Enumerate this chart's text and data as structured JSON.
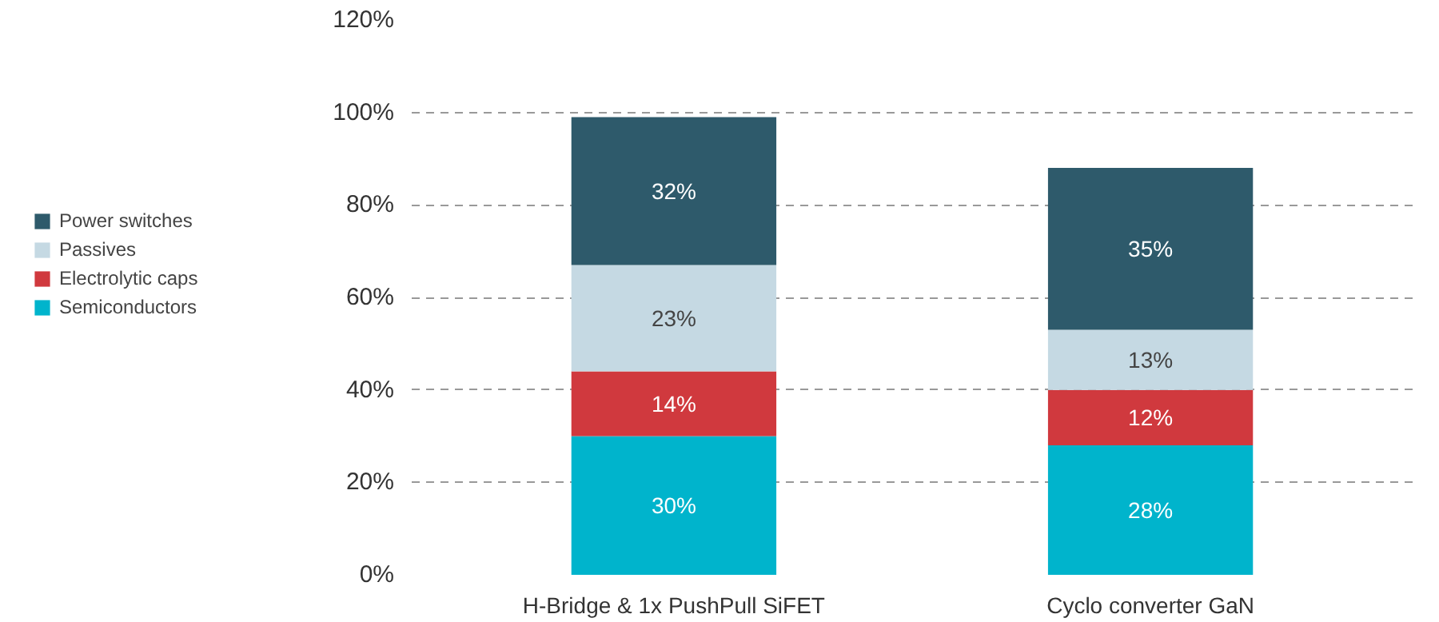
{
  "chart_data": {
    "type": "bar",
    "stacked": true,
    "categories": [
      "H-Bridge & 1x PushPull SiFET",
      "Cyclo converter GaN"
    ],
    "series": [
      {
        "name": "Semiconductors",
        "color": "#00b4cc",
        "values": [
          30,
          28
        ],
        "value_labels": [
          "30%",
          "28%"
        ]
      },
      {
        "name": "Electrolytic caps",
        "color": "#d0393e",
        "values": [
          14,
          12
        ],
        "value_labels": [
          "14%",
          "12%"
        ]
      },
      {
        "name": "Passives",
        "color": "#c5d9e3",
        "values": [
          23,
          13
        ],
        "value_labels": [
          "23%",
          "13%"
        ]
      },
      {
        "name": "Power switches",
        "color": "#2e5a6b",
        "values": [
          32,
          35
        ],
        "value_labels": [
          "32%",
          "35%"
        ]
      }
    ],
    "ylim": [
      0,
      120
    ],
    "yticks": [
      {
        "value": 0,
        "label": "0%"
      },
      {
        "value": 20,
        "label": "20%"
      },
      {
        "value": 40,
        "label": "40%"
      },
      {
        "value": 60,
        "label": "60%"
      },
      {
        "value": 80,
        "label": "80%"
      },
      {
        "value": 100,
        "label": "100%"
      },
      {
        "value": 120,
        "label": "120%"
      }
    ],
    "grid": "y",
    "legend": "left"
  }
}
